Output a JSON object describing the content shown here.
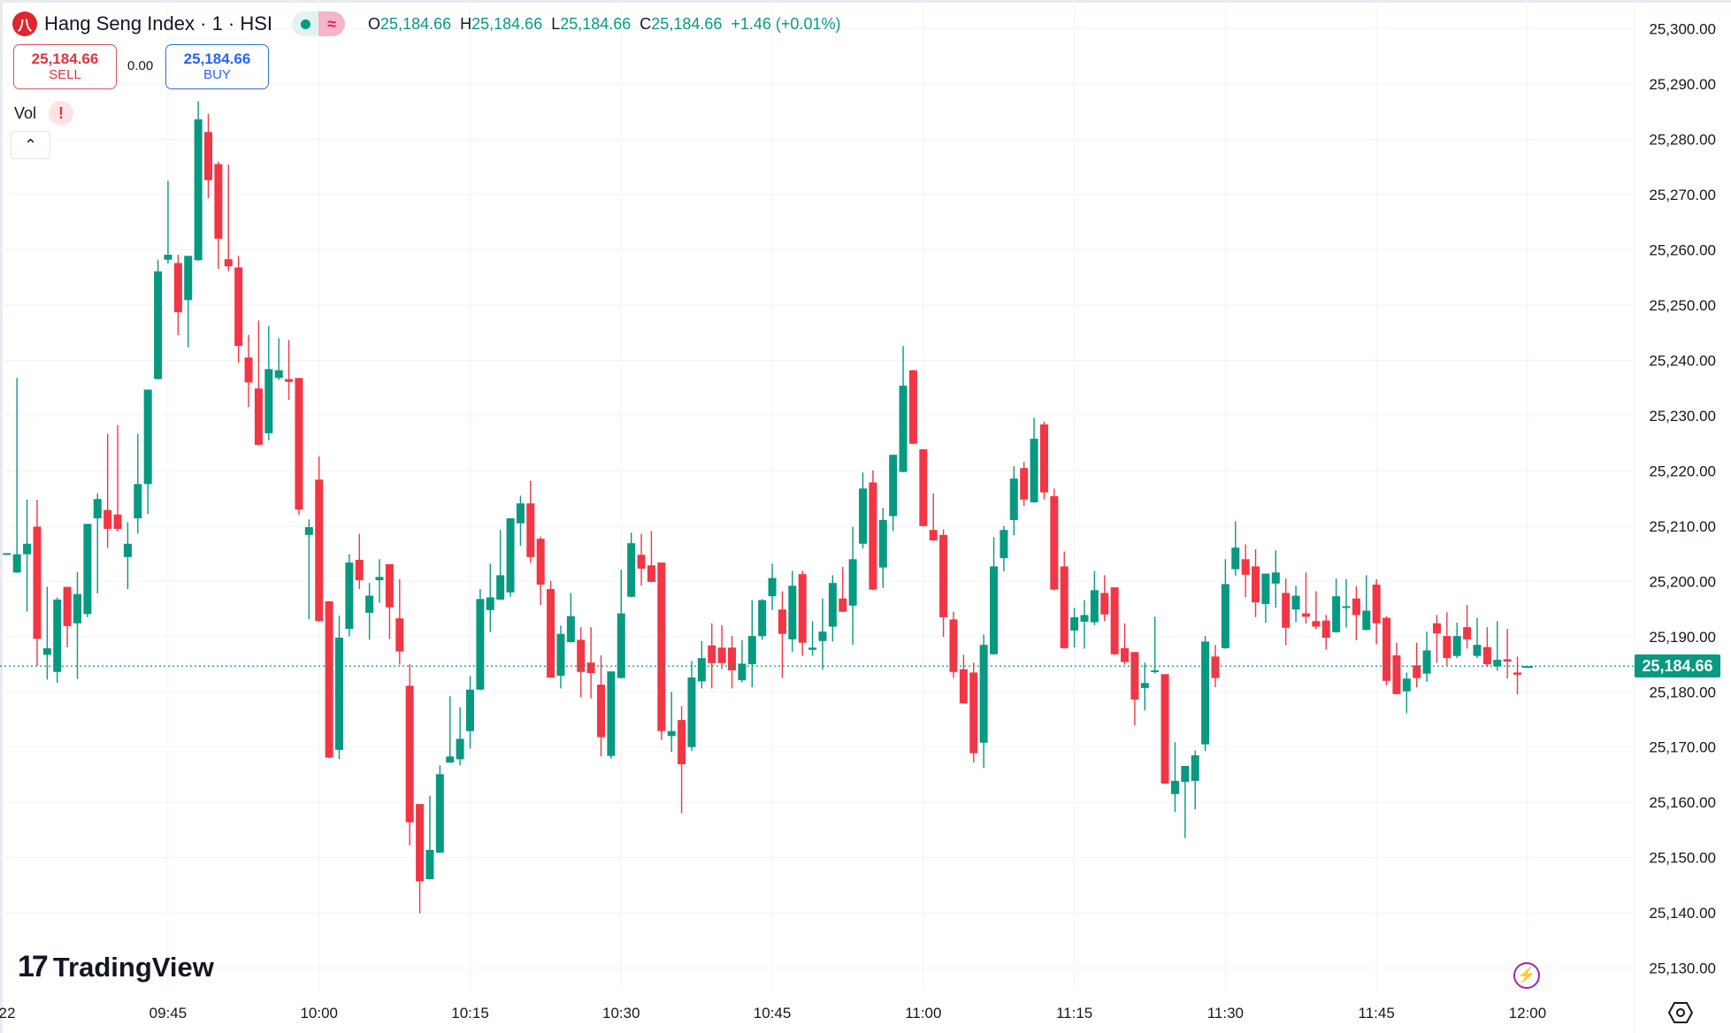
{
  "header": {
    "logo_glyph": "八",
    "title": "Hang Seng Index · 1 · HSI",
    "status_icons": [
      "market-open-dot-icon",
      "delayed-data-icon"
    ],
    "ohlc": {
      "o_label": "O",
      "o": "25,184.66",
      "h_label": "H",
      "h": "25,184.66",
      "l_label": "L",
      "l": "25,184.66",
      "c_label": "C",
      "c": "25,184.66",
      "change": "+1.46 (+0.01%)"
    }
  },
  "trade": {
    "sell_price": "25,184.66",
    "sell_label": "SELL",
    "spread": "0.00",
    "buy_price": "25,184.66",
    "buy_label": "BUY"
  },
  "indicators": {
    "vol_label": "Vol",
    "warning_glyph": "!",
    "collapse_glyph": "⌃"
  },
  "branding": {
    "logo_text": "TradingView",
    "logo_mark": "17"
  },
  "current_price_label": "25,184.66",
  "colors": {
    "up": "#089981",
    "down": "#F23645",
    "grid": "#f0f3fa",
    "current_price": "#089981"
  },
  "chart_data": {
    "type": "candlestick",
    "interval": "1 minute",
    "grid": true,
    "current_price": 25184.66,
    "ylim": [
      25125,
      25305
    ],
    "y_ticks": [
      "25,300.00",
      "25,290.00",
      "25,280.00",
      "25,270.00",
      "25,260.00",
      "25,250.00",
      "25,240.00",
      "25,230.00",
      "25,220.00",
      "25,210.00",
      "25,200.00",
      "25,190.00",
      "25,180.00",
      "25,170.00",
      "25,160.00",
      "25,150.00",
      "25,140.00",
      "25,130.00"
    ],
    "x_ticks": [
      "22",
      "09:45",
      "10:00",
      "10:15",
      "10:30",
      "10:45",
      "11:00",
      "11:15",
      "11:30",
      "11:45",
      "12:00"
    ],
    "candle_fields": [
      "time",
      "open",
      "high",
      "low",
      "close"
    ],
    "candles": [
      [
        "09:29",
        25205.1,
        25205.1,
        25205.1,
        25205.1
      ],
      [
        "09:30",
        25201.6,
        25236.8,
        25201.6,
        25204.9
      ],
      [
        "09:31",
        25204.9,
        25214.8,
        25194.6,
        25206.8
      ],
      [
        "09:32",
        25209.9,
        25214.8,
        25184.8,
        25189.6
      ],
      [
        "09:33",
        25186.7,
        25199.0,
        25182.3,
        25187.9
      ],
      [
        "09:34",
        25183.6,
        25197.1,
        25181.7,
        25196.7
      ],
      [
        "09:35",
        25199.0,
        25199.0,
        25188.1,
        25191.9
      ],
      [
        "09:36",
        25192.4,
        25201.7,
        25182.4,
        25197.7
      ],
      [
        "09:37",
        25194.1,
        25210.4,
        25193.6,
        25210.4
      ],
      [
        "09:38",
        25211.4,
        25215.9,
        25197.9,
        25214.9
      ],
      [
        "09:39",
        25212.9,
        25226.7,
        25206.1,
        25209.5
      ],
      [
        "09:40",
        25212.1,
        25228.3,
        25209.1,
        25209.5
      ],
      [
        "09:41",
        25204.4,
        25210.7,
        25198.7,
        25206.8
      ],
      [
        "09:42",
        25211.4,
        25226.7,
        25208.7,
        25217.6
      ],
      [
        "09:43",
        25217.6,
        25234.7,
        25212.3,
        25234.7
      ],
      [
        "09:44",
        25236.6,
        25258.2,
        25236.6,
        25256.1
      ],
      [
        "09:45",
        25258.2,
        25272.5,
        25257.6,
        25259.1
      ],
      [
        "09:46",
        25257.6,
        25259.1,
        25244.6,
        25248.7
      ],
      [
        "09:47",
        25250.9,
        25258.9,
        25242.4,
        25258.9
      ],
      [
        "09:48",
        25258.1,
        25286.9,
        25258.1,
        25283.6
      ],
      [
        "09:49",
        25281.3,
        25284.6,
        25269.4,
        25272.6
      ],
      [
        "09:50",
        25275.5,
        25276.0,
        25256.6,
        25262.0
      ],
      [
        "09:51",
        25258.3,
        25275.4,
        25256.2,
        25257.0
      ],
      [
        "09:52",
        25256.8,
        25258.9,
        25239.6,
        25242.6
      ],
      [
        "09:53",
        25240.5,
        25244.6,
        25231.6,
        25236.0
      ],
      [
        "09:54",
        25234.9,
        25247.2,
        25224.7,
        25224.7
      ],
      [
        "09:55",
        25226.8,
        25246.2,
        25225.6,
        25238.4
      ],
      [
        "09:56",
        25236.8,
        25244.0,
        25236.5,
        25238.2
      ],
      [
        "09:57",
        25236.6,
        25243.7,
        25232.9,
        25236.1
      ],
      [
        "09:58",
        25236.8,
        25236.8,
        25212.1,
        25213.0
      ],
      [
        "09:59",
        25208.4,
        25211.2,
        25193.2,
        25209.8
      ],
      [
        "10:00",
        25218.4,
        25222.6,
        25192.8,
        25192.8
      ],
      [
        "10:01",
        25196.4,
        25196.4,
        25168.1,
        25168.1
      ],
      [
        "10:02",
        25169.5,
        25193.8,
        25167.9,
        25189.8
      ],
      [
        "10:03",
        25191.4,
        25204.9,
        25190.1,
        25203.4
      ],
      [
        "10:04",
        25203.9,
        25208.6,
        25198.7,
        25200.2
      ],
      [
        "10:05",
        25194.3,
        25199.7,
        25189.5,
        25197.4
      ],
      [
        "10:06",
        25200.2,
        25204.0,
        25196.2,
        25200.8
      ],
      [
        "10:07",
        25203.1,
        25203.1,
        25189.6,
        25195.3
      ],
      [
        "10:08",
        25193.3,
        25200.4,
        25185.0,
        25187.3
      ],
      [
        "10:09",
        25181.1,
        25185.0,
        25152.3,
        25156.4
      ],
      [
        "10:10",
        25159.7,
        25159.7,
        25140.0,
        25145.7
      ],
      [
        "10:11",
        25146.1,
        25161.2,
        25146.1,
        25151.4
      ],
      [
        "10:12",
        25150.9,
        25166.7,
        25150.9,
        25165.1
      ],
      [
        "10:13",
        25167.2,
        25179.2,
        25167.2,
        25168.3
      ],
      [
        "10:14",
        25167.8,
        25177.2,
        25166.8,
        25171.5
      ],
      [
        "10:15",
        25172.9,
        25182.9,
        25169.8,
        25180.4
      ],
      [
        "10:16",
        25180.4,
        25198.6,
        25180.4,
        25196.8
      ],
      [
        "10:17",
        25194.8,
        25203.2,
        25190.9,
        25197.1
      ],
      [
        "10:18",
        25196.7,
        25209.3,
        25196.7,
        25201.1
      ],
      [
        "10:19",
        25198.0,
        25211.4,
        25197.3,
        25211.4
      ],
      [
        "10:20",
        25210.5,
        25215.5,
        25206.5,
        25214.1
      ],
      [
        "10:21",
        25214.1,
        25218.2,
        25203.4,
        25204.4
      ],
      [
        "10:22",
        25207.7,
        25208.1,
        25195.8,
        25199.4
      ],
      [
        "10:23",
        25198.6,
        25200.1,
        25182.6,
        25182.6
      ],
      [
        "10:24",
        25182.9,
        25192.0,
        25180.7,
        25190.5
      ],
      [
        "10:25",
        25189.0,
        25197.9,
        25189.0,
        25193.7
      ],
      [
        "10:26",
        25189.4,
        25191.7,
        25179.1,
        25183.6
      ],
      [
        "10:27",
        25185.3,
        25191.7,
        25178.9,
        25183.4
      ],
      [
        "10:28",
        25181.3,
        25186.6,
        25168.4,
        25171.8
      ],
      [
        "10:29",
        25168.4,
        25183.7,
        25168.0,
        25183.7
      ],
      [
        "10:30",
        25182.5,
        25202.1,
        25182.5,
        25194.2
      ],
      [
        "10:31",
        25197.2,
        25208.8,
        25197.2,
        25206.9
      ],
      [
        "10:32",
        25204.8,
        25208.6,
        25199.3,
        25202.3
      ],
      [
        "10:33",
        25202.9,
        25209.1,
        25199.9,
        25199.9
      ],
      [
        "10:34",
        25203.4,
        25203.4,
        25171.4,
        25172.9
      ],
      [
        "10:35",
        25172.0,
        25180.0,
        25169.2,
        25172.9
      ],
      [
        "10:36",
        25174.9,
        25177.4,
        25158.1,
        25166.9
      ],
      [
        "10:37",
        25170.0,
        25185.6,
        25169.4,
        25182.6
      ],
      [
        "10:38",
        25181.9,
        25189.2,
        25180.7,
        25186.1
      ],
      [
        "10:39",
        25188.4,
        25192.4,
        25180.7,
        25185.2
      ],
      [
        "10:40",
        25188.0,
        25192.1,
        25184.2,
        25185.2
      ],
      [
        "10:41",
        25188.0,
        25190.1,
        25180.7,
        25183.9
      ],
      [
        "10:42",
        25182.1,
        25189.4,
        25181.8,
        25185.1
      ],
      [
        "10:43",
        25185.0,
        25196.6,
        25180.9,
        25190.1
      ],
      [
        "10:44",
        25190.1,
        25196.8,
        25189.5,
        25196.6
      ],
      [
        "10:45",
        25197.3,
        25203.2,
        25194.9,
        25200.6
      ],
      [
        "10:46",
        25194.9,
        25198.2,
        25182.6,
        25190.5
      ],
      [
        "10:47",
        25189.5,
        25201.9,
        25187.3,
        25199.2
      ],
      [
        "10:48",
        25201.3,
        25201.9,
        25186.6,
        25188.9
      ],
      [
        "10:49",
        25187.6,
        25192.8,
        25186.6,
        25188.0
      ],
      [
        "10:50",
        25189.2,
        25196.9,
        25184.1,
        25190.9
      ],
      [
        "10:51",
        25191.8,
        25201.1,
        25189.2,
        25199.7
      ],
      [
        "10:52",
        25196.9,
        25202.6,
        25194.5,
        25194.5
      ],
      [
        "10:53",
        25195.6,
        25209.9,
        25188.6,
        25204.0
      ],
      [
        "10:54",
        25206.8,
        25219.7,
        25206.0,
        25216.8
      ],
      [
        "10:55",
        25217.9,
        25220.1,
        25198.5,
        25198.5
      ],
      [
        "10:56",
        25202.5,
        25213.3,
        25198.9,
        25211.1
      ],
      [
        "10:57",
        25211.8,
        25222.9,
        25209.2,
        25222.9
      ],
      [
        "10:58",
        25219.8,
        25242.6,
        25219.8,
        25235.4
      ],
      [
        "10:59",
        25238.2,
        25238.2,
        25224.9,
        25224.9
      ],
      [
        "11:00",
        25223.9,
        25223.9,
        25210.0,
        25210.0
      ],
      [
        "11:01",
        25209.3,
        25215.9,
        25207.4,
        25207.4
      ],
      [
        "11:02",
        25208.4,
        25209.4,
        25190.0,
        25193.5
      ],
      [
        "11:03",
        25193.1,
        25194.5,
        25182.6,
        25183.6
      ],
      [
        "11:04",
        25184.1,
        25186.7,
        25177.9,
        25177.9
      ],
      [
        "11:05",
        25183.5,
        25185.3,
        25167.3,
        25168.9
      ],
      [
        "11:06",
        25170.8,
        25190.4,
        25166.3,
        25188.5
      ],
      [
        "11:07",
        25186.8,
        25208.0,
        25186.8,
        25202.7
      ],
      [
        "11:08",
        25204.2,
        25210.0,
        25201.9,
        25209.3
      ],
      [
        "11:09",
        25211.1,
        25220.8,
        25208.4,
        25218.6
      ],
      [
        "11:10",
        25220.5,
        25221.6,
        25213.7,
        25214.8
      ],
      [
        "11:11",
        25214.3,
        25229.6,
        25214.3,
        25225.8
      ],
      [
        "11:12",
        25228.4,
        25228.9,
        25214.9,
        25216.1
      ],
      [
        "11:13",
        25215.4,
        25216.8,
        25198.5,
        25198.5
      ],
      [
        "11:14",
        25202.7,
        25205.4,
        25187.9,
        25187.9
      ],
      [
        "11:15",
        25191.1,
        25195.2,
        25188.1,
        25193.5
      ],
      [
        "11:16",
        25192.7,
        25196.6,
        25187.9,
        25193.9
      ],
      [
        "11:17",
        25192.6,
        25201.9,
        25192.1,
        25198.4
      ],
      [
        "11:18",
        25197.9,
        25201.1,
        25192.9,
        25194.0
      ],
      [
        "11:19",
        25198.9,
        25198.9,
        25186.8,
        25186.8
      ],
      [
        "11:20",
        25187.9,
        25192.4,
        25185.0,
        25185.4
      ],
      [
        "11:21",
        25187.2,
        25187.2,
        25174.0,
        25178.6
      ],
      [
        "11:22",
        25180.7,
        25185.3,
        25176.7,
        25181.6
      ],
      [
        "11:23",
        25183.9,
        25193.6,
        25183.4,
        25183.9
      ],
      [
        "11:24",
        25183.2,
        25183.2,
        25163.4,
        25163.4
      ],
      [
        "11:25",
        25161.5,
        25170.9,
        25158.3,
        25163.9
      ],
      [
        "11:26",
        25163.7,
        25166.6,
        25153.6,
        25166.6
      ],
      [
        "11:27",
        25163.9,
        25169.4,
        25158.8,
        25168.5
      ],
      [
        "11:28",
        25170.5,
        25190.1,
        25169.4,
        25189.1
      ],
      [
        "11:29",
        25186.4,
        25188.5,
        25180.9,
        25182.5
      ],
      [
        "11:30",
        25187.9,
        25204.0,
        25187.9,
        25199.5
      ],
      [
        "11:31",
        25202.2,
        25210.9,
        25201.1,
        25206.1
      ],
      [
        "11:32",
        25204.0,
        25206.7,
        25197.2,
        25201.2
      ],
      [
        "11:33",
        25202.7,
        25205.8,
        25193.6,
        25196.2
      ],
      [
        "11:34",
        25195.9,
        25201.4,
        25192.6,
        25201.4
      ],
      [
        "11:35",
        25199.6,
        25205.6,
        25195.3,
        25201.6
      ],
      [
        "11:36",
        25197.9,
        25200.5,
        25188.5,
        25191.6
      ],
      [
        "11:37",
        25194.9,
        25199.2,
        25192.7,
        25197.4
      ],
      [
        "11:38",
        25194.2,
        25201.6,
        25192.4,
        25193.6
      ],
      [
        "11:39",
        25192.8,
        25198.2,
        25191.4,
        25191.8
      ],
      [
        "11:40",
        25192.9,
        25193.9,
        25187.7,
        25189.8
      ],
      [
        "11:41",
        25190.8,
        25200.5,
        25190.8,
        25197.3
      ],
      [
        "11:42",
        25195.4,
        25200.4,
        25191.7,
        25195.5
      ],
      [
        "11:43",
        25196.9,
        25199.1,
        25189.4,
        25193.9
      ],
      [
        "11:44",
        25191.2,
        25201.1,
        25191.2,
        25194.7
      ],
      [
        "11:45",
        25199.4,
        25200.4,
        25188.7,
        25192.4
      ],
      [
        "11:46",
        25193.4,
        25193.7,
        25181.2,
        25182.0
      ],
      [
        "11:47",
        25186.6,
        25188.9,
        25179.6,
        25179.6
      ],
      [
        "11:48",
        25180.1,
        25183.5,
        25176.2,
        25182.4
      ],
      [
        "11:49",
        25184.8,
        25188.9,
        25180.9,
        25182.5
      ],
      [
        "11:50",
        25183.3,
        25190.9,
        25181.9,
        25187.5
      ],
      [
        "11:51",
        25192.4,
        25193.9,
        25185.3,
        25190.6
      ],
      [
        "11:52",
        25190.1,
        25194.4,
        25184.9,
        25186.1
      ],
      [
        "11:53",
        25186.5,
        25192.5,
        25186.2,
        25190.1
      ],
      [
        "11:54",
        25191.7,
        25195.7,
        25187.9,
        25189.5
      ],
      [
        "11:55",
        25186.5,
        25193.4,
        25186.2,
        25188.5
      ],
      [
        "11:56",
        25188.1,
        25191.7,
        25184.6,
        25185.0
      ],
      [
        "11:57",
        25184.6,
        25192.8,
        25183.9,
        25185.8
      ],
      [
        "11:58",
        25185.9,
        25191.4,
        25182.5,
        25185.5
      ],
      [
        "11:59",
        25183.5,
        25186.4,
        25179.6,
        25183.1
      ],
      [
        "12:00",
        25184.66,
        25184.66,
        25184.66,
        25184.66
      ]
    ]
  }
}
